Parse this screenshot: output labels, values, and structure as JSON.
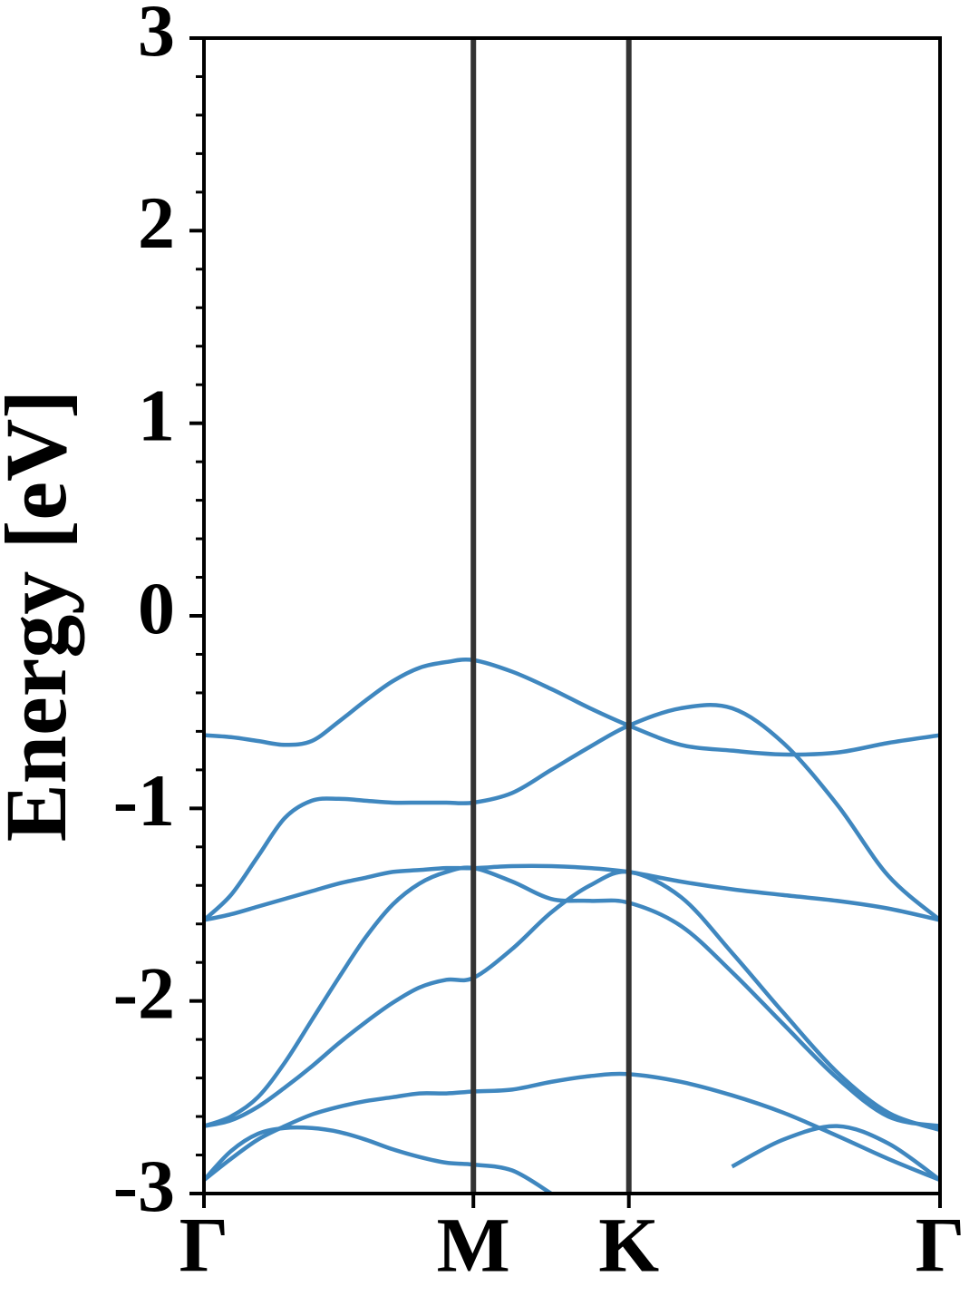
{
  "chart_data": {
    "type": "line",
    "ylabel": "Energy [eV]",
    "x": [
      0,
      0.1,
      0.2,
      0.3,
      0.4,
      0.5,
      0.6,
      0.7,
      0.8,
      0.9,
      1.0,
      1.144,
      1.289,
      1.433,
      1.577,
      1.77,
      1.96,
      2.15,
      2.35,
      2.54,
      2.732
    ],
    "series": [
      {
        "color": "#3f87bf",
        "values": [
          -0.62,
          -0.63,
          -0.65,
          -0.67,
          -0.65,
          -0.55,
          -0.44,
          -0.34,
          -0.27,
          -0.24,
          -0.23,
          -0.29,
          -0.38,
          -0.48,
          -0.57,
          -0.67,
          -0.7,
          -0.72,
          -0.71,
          -0.66,
          -0.62
        ]
      },
      {
        "color": "#3f87bf",
        "values": [
          -1.58,
          -1.45,
          -1.25,
          -1.05,
          -0.96,
          -0.95,
          -0.96,
          -0.97,
          -0.97,
          -0.97,
          -0.97,
          -0.92,
          -0.8,
          -0.68,
          -0.57,
          -0.48,
          -0.48,
          -0.66,
          -0.98,
          -1.35,
          -1.58
        ]
      },
      {
        "color": "#3f87bf",
        "values": [
          -1.58,
          -1.55,
          -1.51,
          -1.47,
          -1.43,
          -1.39,
          -1.36,
          -1.33,
          -1.32,
          -1.31,
          -1.31,
          -1.3,
          -1.3,
          -1.31,
          -1.33,
          -1.38,
          -1.42,
          -1.45,
          -1.48,
          -1.52,
          -1.58
        ]
      },
      {
        "color": "#3f87bf",
        "values": [
          -2.65,
          -2.6,
          -2.5,
          -2.32,
          -2.1,
          -1.88,
          -1.67,
          -1.5,
          -1.39,
          -1.33,
          -1.31,
          -1.38,
          -1.47,
          -1.48,
          -1.49,
          -1.61,
          -1.85,
          -2.12,
          -2.4,
          -2.6,
          -2.65
        ]
      },
      {
        "color": "#3f87bf",
        "values": [
          -2.65,
          -2.62,
          -2.55,
          -2.45,
          -2.34,
          -2.22,
          -2.11,
          -2.01,
          -1.93,
          -1.89,
          -1.88,
          -1.73,
          -1.54,
          -1.4,
          -1.33,
          -1.46,
          -1.75,
          -2.06,
          -2.37,
          -2.58,
          -2.67
        ]
      },
      {
        "color": "#3f87bf",
        "values": [
          -2.93,
          -2.82,
          -2.72,
          -2.65,
          -2.59,
          -2.55,
          -2.52,
          -2.5,
          -2.48,
          -2.48,
          -2.47,
          -2.46,
          -2.42,
          -2.39,
          -2.38,
          -2.42,
          -2.49,
          -2.58,
          -2.7,
          -2.82,
          -2.93
        ]
      },
      {
        "color": "#3f87bf",
        "values": [
          -2.93,
          -2.78,
          -2.69,
          -2.66,
          -2.66,
          -2.68,
          -2.72,
          -2.77,
          -2.81,
          -2.84,
          -2.85,
          -2.88,
          -3.0,
          null,
          null,
          null,
          -2.86,
          -2.72,
          -2.65,
          -2.74,
          -2.93
        ]
      }
    ],
    "xlim": [
      0,
      2.732
    ],
    "xticks": [
      {
        "value": 0,
        "label": "Γ"
      },
      {
        "value": 1.0,
        "label": "M"
      },
      {
        "value": 1.577,
        "label": "K"
      },
      {
        "value": 2.732,
        "label": "Γ"
      }
    ],
    "ylim": [
      -3,
      3
    ],
    "yticks": [
      -3,
      -2,
      -1,
      0,
      1,
      2,
      3
    ],
    "yminorticks": [
      -2.8,
      -2.6,
      -2.4,
      -2.2,
      -1.8,
      -1.6,
      -1.4,
      -1.2,
      -0.8,
      -0.6,
      -0.4,
      -0.2,
      0.2,
      0.4,
      0.6,
      0.8,
      1.2,
      1.4,
      1.6,
      1.8,
      2.2,
      2.4,
      2.6,
      2.8
    ],
    "kpoint_lines": true,
    "kpoint_line_color": "#333333"
  }
}
